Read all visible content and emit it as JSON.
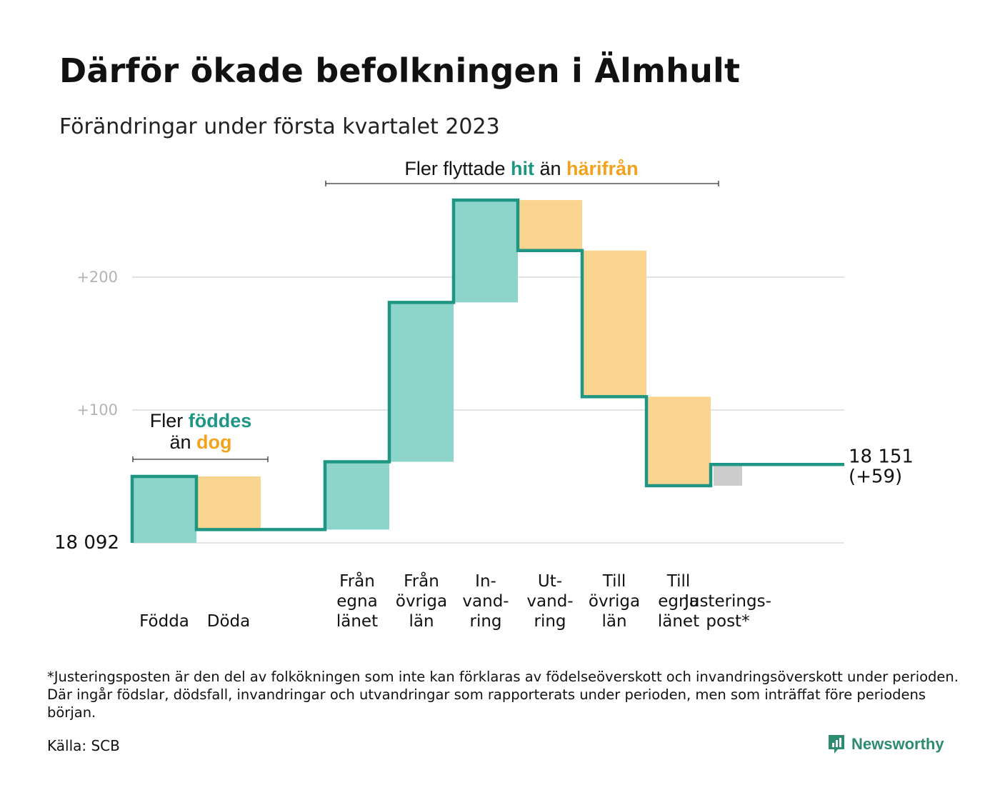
{
  "title": "Därför ökade befolkningen i Älmhult",
  "subtitle": "Förändringar under första kvartalet 2023",
  "footnote": "*Justeringsposten är den del av folkökningen som inte kan förklaras av födelseöverskott och invandringsöverskott under perioden. Där ingår födslar, dödsfall, invandringar och utvandringar som rapporterats under perioden, men som inträffat före periodens början.",
  "source": "Källa: SCB",
  "brand": "Newsworthy",
  "colors": {
    "increase": "#8dd4cb",
    "decrease": "#f9d58f",
    "adjustment": "#cccccc",
    "line": "#1e9683",
    "accent_teal": "#1e9683",
    "accent_orange": "#f2a31e",
    "grid": "#e3e3e3"
  },
  "annotations": {
    "births": {
      "line1_prefix": "Fler ",
      "line1_highlight": "föddes",
      "line2_prefix": "än ",
      "line2_highlight": "dog"
    },
    "migration": {
      "prefix": "Fler flyttade ",
      "highlight1": "hit",
      "middle": " än ",
      "highlight2": "härifrån"
    }
  },
  "chart_data": {
    "type": "waterfall",
    "start_value": 18092,
    "start_label": "18 092",
    "end_value": 18151,
    "end_label_line1": "18 151",
    "end_label_line2": "(+59)",
    "y_ticks": [
      {
        "value": 100,
        "label": "+100"
      },
      {
        "value": 200,
        "label": "+200"
      }
    ],
    "ylim": [
      0,
      258
    ],
    "steps": [
      {
        "label": [
          "Födda"
        ],
        "start": 0,
        "end": 50,
        "kind": "increase"
      },
      {
        "label": [
          "Döda"
        ],
        "start": 50,
        "end": 10,
        "kind": "decrease"
      },
      {
        "label": [
          "Från",
          "egna",
          "länet"
        ],
        "start": 10,
        "end": 61,
        "kind": "increase"
      },
      {
        "label": [
          "Från",
          "övriga",
          "län"
        ],
        "start": 61,
        "end": 181,
        "kind": "increase"
      },
      {
        "label": [
          "In-",
          "vand-",
          "ring"
        ],
        "start": 181,
        "end": 258,
        "kind": "increase"
      },
      {
        "label": [
          "Ut-",
          "vand-",
          "ring"
        ],
        "start": 258,
        "end": 220,
        "kind": "decrease"
      },
      {
        "label": [
          "Till",
          "övriga",
          "län"
        ],
        "start": 220,
        "end": 110,
        "kind": "decrease"
      },
      {
        "label": [
          "Till",
          "egna",
          "länet"
        ],
        "start": 110,
        "end": 43,
        "kind": "decrease"
      },
      {
        "label": [
          "Justerings-",
          "post*"
        ],
        "start": 43,
        "end": 59,
        "kind": "adjustment"
      }
    ]
  }
}
